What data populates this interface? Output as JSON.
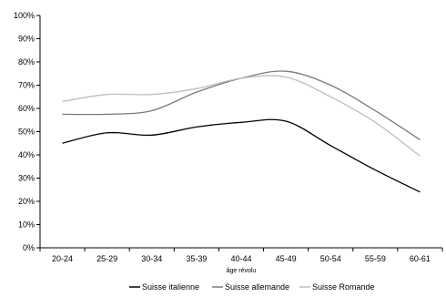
{
  "chart_data": {
    "type": "line",
    "xlabel": "âge révolu",
    "ylabel": "",
    "title": "",
    "categories": [
      "20-24",
      "25-29",
      "30-34",
      "35-39",
      "40-44",
      "45-49",
      "50-54",
      "55-59",
      "60-61"
    ],
    "ylim": [
      0,
      100
    ],
    "yticks": [
      "0%",
      "10%",
      "20%",
      "30%",
      "40%",
      "50%",
      "60%",
      "70%",
      "80%",
      "90%",
      "100%"
    ],
    "series": [
      {
        "name": "Suisse italienne",
        "color": "#000000",
        "values": [
          45,
          49.5,
          48.5,
          52,
          54,
          54.5,
          44,
          33.5,
          24
        ]
      },
      {
        "name": "Suisse allemande",
        "color": "#7a7a7a",
        "values": [
          57.5,
          57.5,
          59,
          67,
          73,
          76,
          70,
          59,
          46.5
        ]
      },
      {
        "name": "Suisse Romande",
        "color": "#bfbfbf",
        "values": [
          63,
          66,
          66,
          68.5,
          73,
          73.5,
          65,
          54,
          39.5
        ]
      }
    ],
    "grid": false,
    "legend_position": "bottom"
  }
}
